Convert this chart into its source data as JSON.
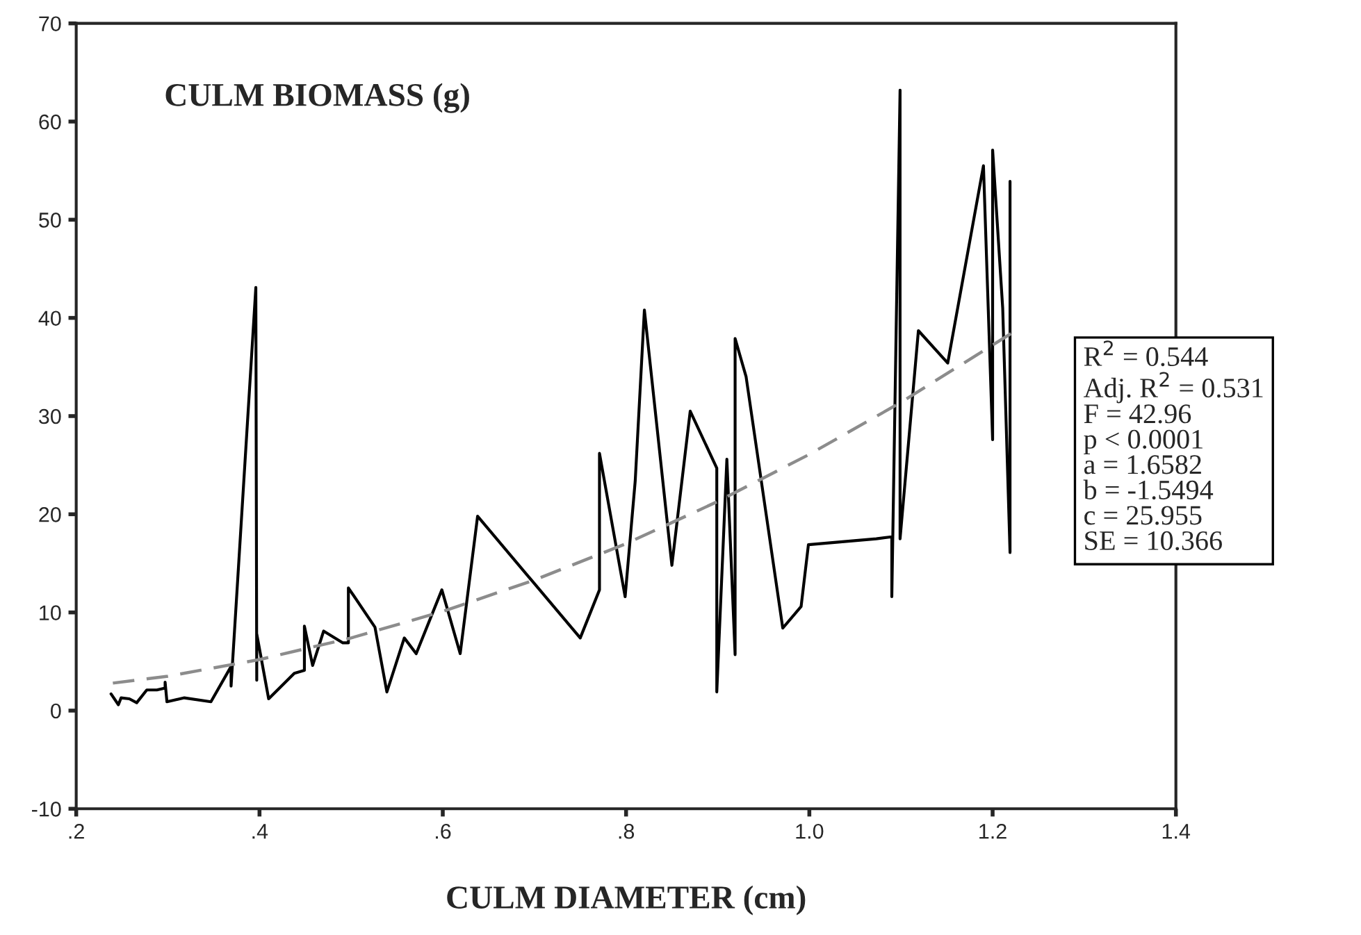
{
  "chart_data": {
    "type": "line",
    "title": "CULM BIOMASS (g)",
    "xlabel": "CULM DIAMETER (cm)",
    "series": [
      {
        "color": "#000000",
        "line_style": "solid",
        "x": [
          0.238,
          0.246,
          0.249,
          0.258,
          0.266,
          0.277,
          0.288,
          0.297,
          0.297,
          0.299,
          0.318,
          0.347,
          0.369,
          0.369,
          0.396,
          0.397,
          0.397,
          0.41,
          0.438,
          0.449,
          0.449,
          0.458,
          0.47,
          0.491,
          0.497,
          0.497,
          0.497,
          0.526,
          0.539,
          0.558,
          0.571,
          0.599,
          0.619,
          0.638,
          0.75,
          0.771,
          0.771,
          0.799,
          0.81,
          0.82,
          0.85,
          0.87,
          0.899,
          0.899,
          0.91,
          0.919,
          0.919,
          0.931,
          0.971,
          0.991,
          0.999,
          1.073,
          1.09,
          1.09,
          1.099,
          1.099,
          1.119,
          1.151,
          1.19,
          1.2,
          1.2,
          1.211,
          1.219,
          1.219
        ],
        "values": [
          1.7,
          0.6,
          1.3,
          1.2,
          0.8,
          2.1,
          2.1,
          2.3,
          2.9,
          0.9,
          1.3,
          0.9,
          4.5,
          2.5,
          43.1,
          3.1,
          7.8,
          1.2,
          3.8,
          4.1,
          8.6,
          4.6,
          8.1,
          6.9,
          6.9,
          9.7,
          12.5,
          8.5,
          1.9,
          7.4,
          5.8,
          12.3,
          5.8,
          19.8,
          7.4,
          12.3,
          26.2,
          11.6,
          23.4,
          40.8,
          14.8,
          30.5,
          24.7,
          1.9,
          25.6,
          5.7,
          37.9,
          34.0,
          8.4,
          10.6,
          16.9,
          17.5,
          17.7,
          11.6,
          63.2,
          17.5,
          38.7,
          35.4,
          55.5,
          27.6,
          57.1,
          41.0,
          16.1,
          53.9
        ]
      },
      {
        "color": "#8c8c8c",
        "line_style": "dashed",
        "x": [
          0.24,
          0.3,
          0.4,
          0.5,
          0.6,
          0.7,
          0.8,
          0.9,
          1.0,
          1.1,
          1.22
        ],
        "values": [
          2.8,
          3.5,
          5.2,
          7.4,
          10.1,
          13.3,
          17.0,
          21.3,
          26.1,
          31.4,
          38.4
        ]
      }
    ],
    "xlim": [
      0.2,
      1.4
    ],
    "xticks": [
      {
        "value": 0.2,
        "label": ".2"
      },
      {
        "value": 0.4,
        "label": ".4"
      },
      {
        "value": 0.6,
        "label": ".6"
      },
      {
        "value": 0.8,
        "label": ".8"
      },
      {
        "value": 1.0,
        "label": "1.0"
      },
      {
        "value": 1.2,
        "label": "1.2"
      },
      {
        "value": 1.4,
        "label": "1.4"
      }
    ],
    "ylim": [
      -10,
      70
    ],
    "yticks": [
      -10,
      0,
      10,
      20,
      30,
      40,
      50,
      60,
      70
    ],
    "grid": false,
    "legend": false,
    "marker": "none",
    "annotations": [
      "R$^{2}$ = 0.544",
      "Adj. R$^{2}$ = 0.531",
      "F = 42.96",
      "p < 0.0001",
      "a = 1.6582",
      "b = -1.5494",
      "c = 25.955",
      "SE = 10.366"
    ]
  }
}
